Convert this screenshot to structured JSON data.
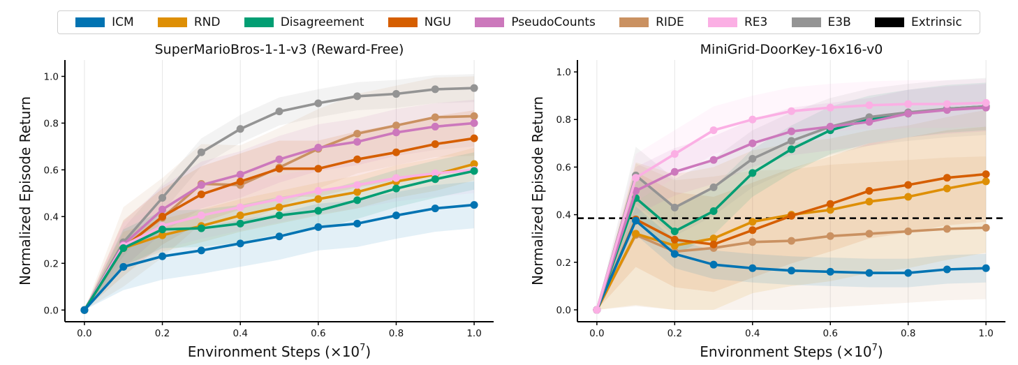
{
  "legend": [
    {
      "name": "ICM",
      "color": "#0173b2"
    },
    {
      "name": "RND",
      "color": "#de8f05"
    },
    {
      "name": "Disagreement",
      "color": "#029e73"
    },
    {
      "name": "NGU",
      "color": "#d55e00"
    },
    {
      "name": "PseudoCounts",
      "color": "#cc78bc"
    },
    {
      "name": "RIDE",
      "color": "#ca9161"
    },
    {
      "name": "RE3",
      "color": "#fbafe4"
    },
    {
      "name": "E3B",
      "color": "#949494"
    },
    {
      "name": "Extrinsic",
      "color": "#000000"
    }
  ],
  "chart_data": [
    {
      "type": "line",
      "title": "SuperMarioBros-1-1-v3 (Reward-Free)",
      "xlabel": "Environment Steps (×10",
      "xlabel_exp": "7",
      "xlabel_close": ")",
      "ylabel": "Normalized Episode Return",
      "xlim": [
        -0.05,
        1.05
      ],
      "ylim": [
        -0.05,
        1.07
      ],
      "xticks": [
        0.0,
        0.2,
        0.4,
        0.6,
        0.8,
        1.0
      ],
      "xtick_labels": [
        "0.0",
        "0.2",
        "0.4",
        "0.6",
        "0.8",
        "1.0"
      ],
      "yticks": [
        0.0,
        0.2,
        0.4,
        0.6,
        0.8,
        1.0
      ],
      "ytick_labels": [
        "0.0",
        "0.2",
        "0.4",
        "0.6",
        "0.8",
        "1.0"
      ],
      "x": [
        0.0,
        0.1,
        0.2,
        0.3,
        0.4,
        0.5,
        0.6,
        0.7,
        0.8,
        0.9,
        1.0
      ],
      "series": [
        {
          "name": "E3B",
          "values": [
            0.0,
            0.29,
            0.48,
            0.675,
            0.775,
            0.85,
            0.885,
            0.915,
            0.925,
            0.945,
            0.95
          ],
          "band": 0.06
        },
        {
          "name": "RIDE",
          "values": [
            0.0,
            0.27,
            0.395,
            0.54,
            0.535,
            0.61,
            0.69,
            0.755,
            0.79,
            0.825,
            0.83
          ],
          "band": 0.17
        },
        {
          "name": "PseudoCounts",
          "values": [
            0.0,
            0.28,
            0.43,
            0.535,
            0.58,
            0.645,
            0.695,
            0.72,
            0.76,
            0.785,
            0.8
          ],
          "band": 0.1
        },
        {
          "name": "NGU",
          "values": [
            0.0,
            0.265,
            0.4,
            0.495,
            0.55,
            0.605,
            0.605,
            0.645,
            0.675,
            0.71,
            0.735
          ],
          "band": 0.12
        },
        {
          "name": "RND",
          "values": [
            0.0,
            0.265,
            0.32,
            0.36,
            0.405,
            0.44,
            0.475,
            0.505,
            0.55,
            0.58,
            0.625
          ],
          "band": 0.07
        },
        {
          "name": "RE3",
          "values": [
            0.0,
            0.275,
            0.36,
            0.405,
            0.44,
            0.475,
            0.51,
            0.535,
            0.565,
            0.585,
            0.6
          ],
          "band": 0.1
        },
        {
          "name": "Disagreement",
          "values": [
            0.0,
            0.265,
            0.345,
            0.35,
            0.37,
            0.405,
            0.425,
            0.47,
            0.52,
            0.56,
            0.595
          ],
          "band": 0.08
        },
        {
          "name": "ICM",
          "values": [
            0.0,
            0.185,
            0.23,
            0.255,
            0.285,
            0.315,
            0.355,
            0.37,
            0.405,
            0.435,
            0.45
          ],
          "band": 0.1
        }
      ]
    },
    {
      "type": "line",
      "title": "MiniGrid-DoorKey-16x16-v0",
      "xlabel": "Environment Steps (×10",
      "xlabel_exp": "7",
      "xlabel_close": ")",
      "ylabel": "Normalized Episode Return",
      "xlim": [
        -0.05,
        1.05
      ],
      "ylim": [
        -0.05,
        1.05
      ],
      "xticks": [
        0.0,
        0.2,
        0.4,
        0.6,
        0.8,
        1.0
      ],
      "xtick_labels": [
        "0.0",
        "0.2",
        "0.4",
        "0.6",
        "0.8",
        "1.0"
      ],
      "yticks": [
        0.0,
        0.2,
        0.4,
        0.6,
        0.8,
        1.0
      ],
      "ytick_labels": [
        "0.0",
        "0.2",
        "0.4",
        "0.6",
        "0.8",
        "1.0"
      ],
      "hline": {
        "name": "Extrinsic",
        "y": 0.385
      },
      "x": [
        0.0,
        0.1,
        0.2,
        0.3,
        0.4,
        0.5,
        0.6,
        0.7,
        0.8,
        0.9,
        1.0
      ],
      "series": [
        {
          "name": "RIDE",
          "values": [
            0.0,
            0.315,
            0.245,
            0.26,
            0.285,
            0.29,
            0.31,
            0.32,
            0.33,
            0.34,
            0.345
          ],
          "band": 0.3
        },
        {
          "name": "RND",
          "values": [
            0.0,
            0.32,
            0.27,
            0.3,
            0.37,
            0.4,
            0.42,
            0.455,
            0.475,
            0.51,
            0.54
          ],
          "band": 0.3
        },
        {
          "name": "NGU",
          "values": [
            0.0,
            0.38,
            0.295,
            0.275,
            0.335,
            0.395,
            0.445,
            0.5,
            0.525,
            0.555,
            0.57
          ],
          "band": 0.2
        },
        {
          "name": "ICM",
          "values": [
            0.0,
            0.375,
            0.235,
            0.19,
            0.175,
            0.165,
            0.16,
            0.155,
            0.155,
            0.17,
            0.175
          ],
          "band": 0.06
        },
        {
          "name": "Disagreement",
          "values": [
            0.0,
            0.47,
            0.33,
            0.415,
            0.575,
            0.675,
            0.755,
            0.8,
            0.825,
            0.845,
            0.855
          ],
          "band": 0.1
        },
        {
          "name": "E3B",
          "values": [
            0.0,
            0.565,
            0.43,
            0.515,
            0.635,
            0.71,
            0.77,
            0.81,
            0.83,
            0.845,
            0.855
          ],
          "band": 0.12
        },
        {
          "name": "PseudoCounts",
          "values": [
            0.0,
            0.5,
            0.58,
            0.63,
            0.7,
            0.75,
            0.77,
            0.79,
            0.825,
            0.84,
            0.85
          ],
          "band": 0.1
        },
        {
          "name": "RE3",
          "values": [
            0.0,
            0.555,
            0.655,
            0.755,
            0.8,
            0.835,
            0.85,
            0.86,
            0.865,
            0.865,
            0.87
          ],
          "band": 0.1
        }
      ]
    }
  ]
}
